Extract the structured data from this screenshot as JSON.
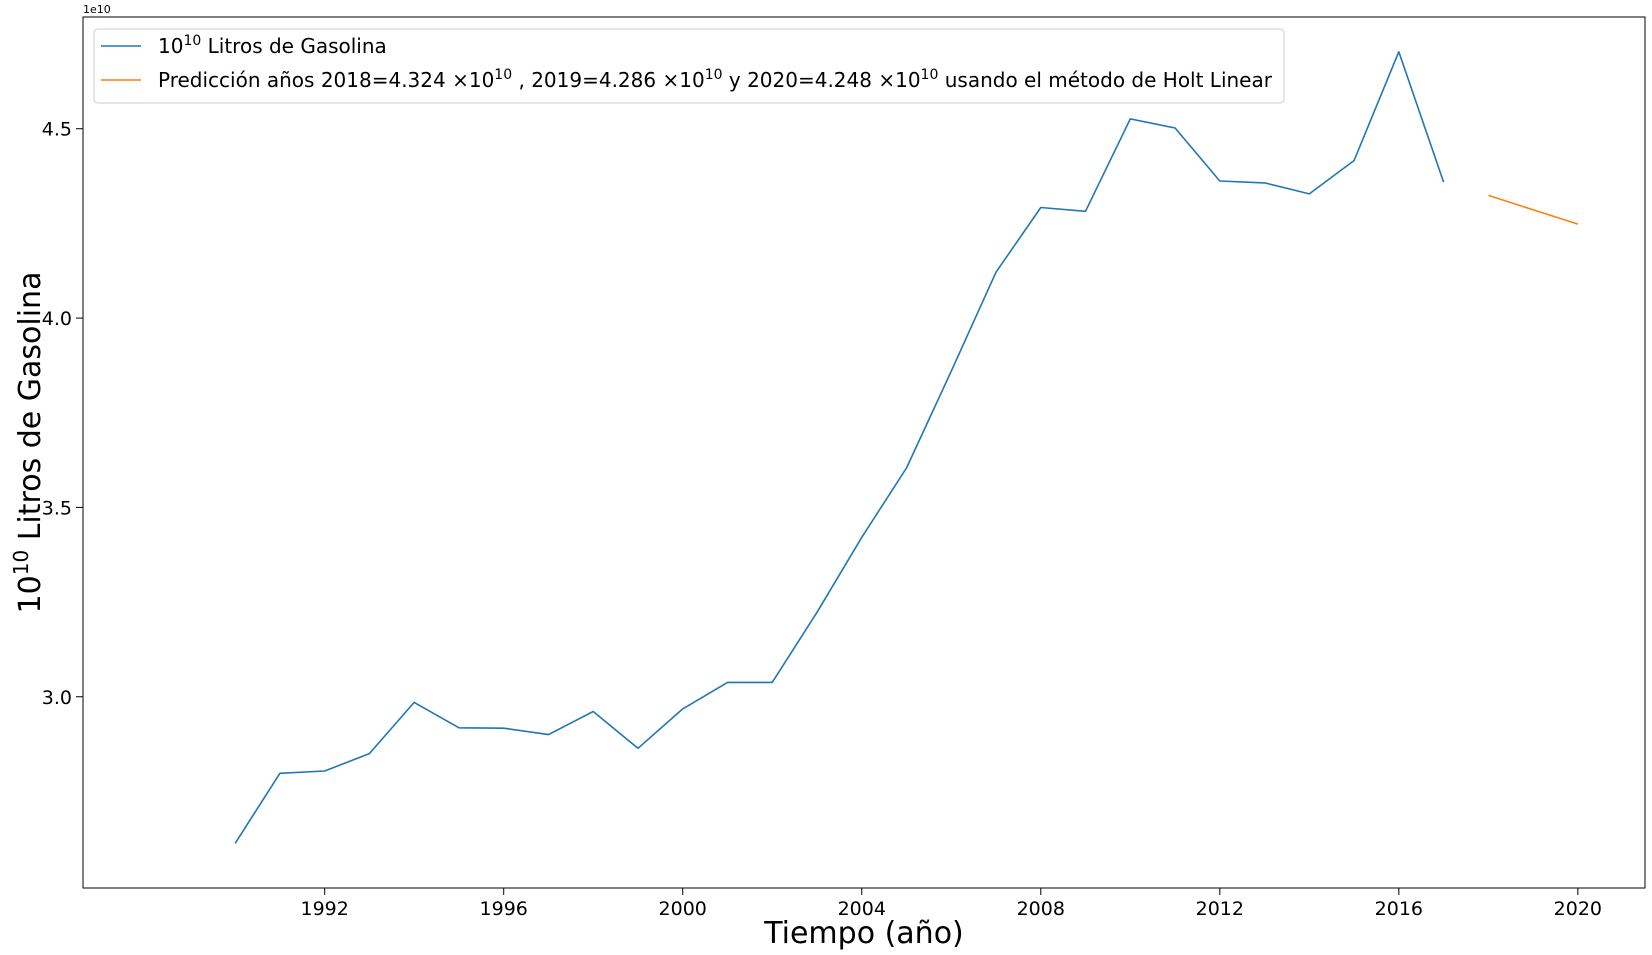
{
  "chart_data": {
    "type": "line",
    "xlabel": "Tiempo (año)",
    "ylabel_base": "10",
    "ylabel_exp": "10",
    "ylabel_rest": " Litros de Gasolina",
    "offset_text": "1e10",
    "xlim": [
      1986.6,
      2021.5
    ],
    "ylim": [
      2.495,
      4.795
    ],
    "x_ticks": [
      1992,
      1996,
      2000,
      2004,
      2008,
      2012,
      2016,
      2020
    ],
    "x_tick_labels": [
      "1992",
      "1996",
      "2000",
      "2004",
      "2008",
      "2012",
      "2016",
      "2020"
    ],
    "y_ticks": [
      3.0,
      3.5,
      4.0,
      4.5
    ],
    "y_tick_labels": [
      "3.0",
      "3.5",
      "4.0",
      "4.5"
    ],
    "series": [
      {
        "color": "#1f77b4",
        "x": [
          1990,
          1991,
          1992,
          1993,
          1994,
          1995,
          1996,
          1997,
          1998,
          1999,
          2000,
          2001,
          2002,
          2003,
          2004,
          2005,
          2006,
          2007,
          2008,
          2009,
          2010,
          2011,
          2012,
          2013,
          2014,
          2015,
          2016,
          2017
        ],
        "y": [
          2.613,
          2.798,
          2.804,
          2.85,
          2.985,
          2.918,
          2.917,
          2.9,
          2.961,
          2.864,
          2.968,
          3.038,
          3.038,
          3.223,
          3.421,
          3.604,
          3.86,
          4.121,
          4.292,
          4.282,
          4.526,
          4.502,
          4.362,
          4.357,
          4.328,
          4.416,
          4.703,
          4.359
        ],
        "legend": [
          {
            "t": "10",
            "s": "base"
          },
          {
            "t": "10",
            "s": "sup"
          },
          {
            "t": " Litros de Gasolina",
            "s": "base"
          }
        ]
      },
      {
        "color": "#ff7f0e",
        "x": [
          2018,
          2019,
          2020
        ],
        "y": [
          4.324,
          4.286,
          4.248
        ],
        "legend": [
          {
            "t": "Predicción años 2018=4.324 ×10",
            "s": "base"
          },
          {
            "t": "10",
            "s": "sup"
          },
          {
            "t": " , 2019=4.286  ×10",
            "s": "base"
          },
          {
            "t": "10",
            "s": "sup"
          },
          {
            "t": " y 2020=4.248  ×10",
            "s": "base"
          },
          {
            "t": "10",
            "s": "sup"
          },
          {
            "t": " usando el método de Holt Linear",
            "s": "base"
          }
        ]
      }
    ],
    "legend_position": "top-left",
    "grid": false
  }
}
